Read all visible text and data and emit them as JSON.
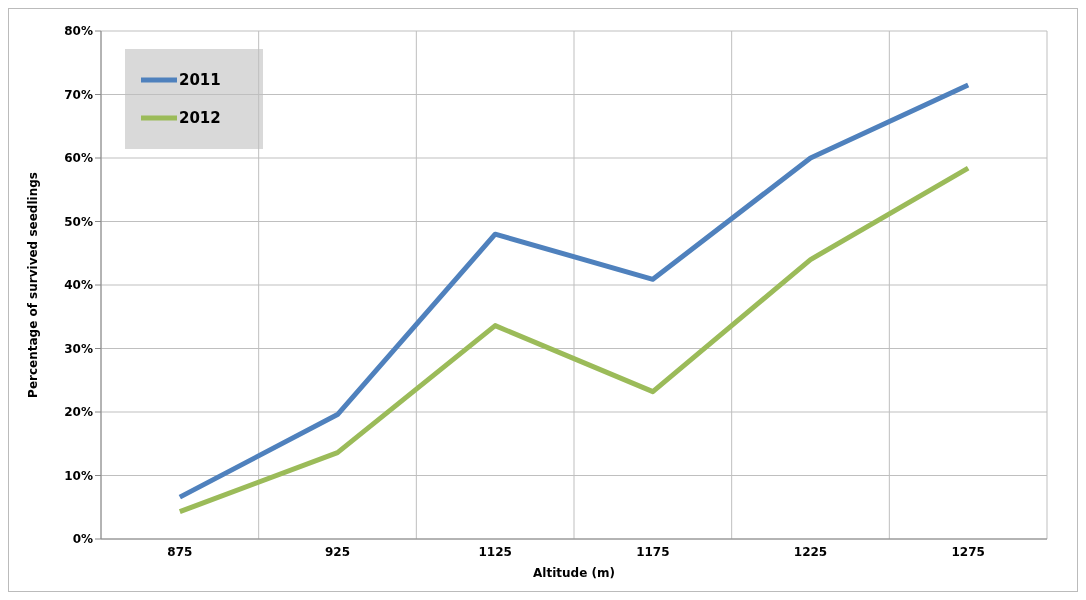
{
  "chart_data": {
    "type": "line",
    "xlabel": "Altitude (m)",
    "ylabel": "Percentage of survived  seedlings",
    "categories": [
      "875",
      "925",
      "1125",
      "1175",
      "1225",
      "1275"
    ],
    "series": [
      {
        "name": "2011",
        "color": "#4f81bd",
        "values": [
          6.6,
          19.6,
          48,
          40.9,
          60,
          71.5
        ]
      },
      {
        "name": "2012",
        "color": "#9bbb59",
        "values": [
          4.3,
          13.6,
          33.6,
          23.2,
          44,
          58.4
        ]
      }
    ],
    "ylim": [
      0,
      80
    ],
    "yticks": [
      {
        "value": 0,
        "label": "0%"
      },
      {
        "value": 10,
        "label": "10%"
      },
      {
        "value": 20,
        "label": "20%"
      },
      {
        "value": 30,
        "label": "30%"
      },
      {
        "value": 40,
        "label": "40%"
      },
      {
        "value": 50,
        "label": "50%"
      },
      {
        "value": 60,
        "label": "60%"
      },
      {
        "value": 70,
        "label": "70%"
      },
      {
        "value": 80,
        "label": "80%"
      }
    ],
    "grid": true,
    "legend": "top left",
    "marker": "none",
    "line_style": "solid"
  }
}
